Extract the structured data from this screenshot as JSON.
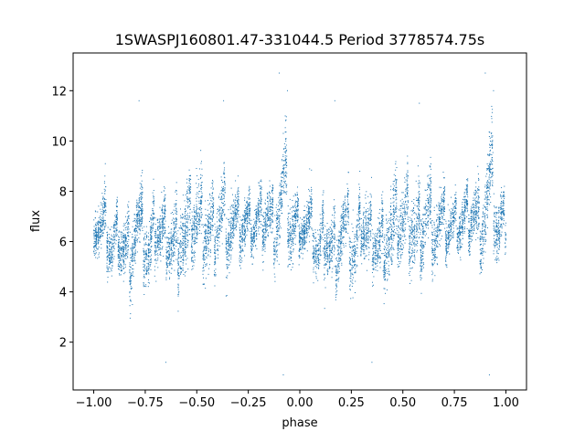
{
  "chart_data": {
    "type": "scatter",
    "title": "1SWASPJ160801.47-331044.5 Period 3778574.75s",
    "xlabel": "phase",
    "ylabel": "flux",
    "xlim": [
      -1.1,
      1.1
    ],
    "ylim": [
      0.1,
      13.5
    ],
    "xticks": [
      -1.0,
      -0.75,
      -0.5,
      -0.25,
      0.0,
      0.25,
      0.5,
      0.75,
      1.0
    ],
    "xtick_labels": [
      "−1.00",
      "−0.75",
      "−0.50",
      "−0.25",
      "0.00",
      "0.25",
      "0.50",
      "0.75",
      "1.00"
    ],
    "yticks": [
      2,
      4,
      6,
      8,
      10,
      12
    ],
    "ytick_labels": [
      "2",
      "4",
      "6",
      "8",
      "10",
      "12"
    ],
    "grid": false,
    "marker_color": "#1f77b4",
    "marker": "point",
    "series": [
      {
        "name": "",
        "profile": {
          "phase": [
            0.0,
            0.03,
            0.06,
            0.09,
            0.12,
            0.15,
            0.18,
            0.21,
            0.24,
            0.27,
            0.3,
            0.33,
            0.36,
            0.39,
            0.42,
            0.45,
            0.48,
            0.51,
            0.54,
            0.57,
            0.6,
            0.63,
            0.66,
            0.69,
            0.72,
            0.75,
            0.78,
            0.81,
            0.84,
            0.87,
            0.9,
            0.93,
            0.96,
            1.0
          ],
          "flux_center": [
            6.8,
            6.5,
            6.6,
            5.4,
            6.4,
            5.6,
            5.8,
            6.6,
            6.0,
            5.2,
            6.8,
            6.2,
            6.2,
            5.7,
            6.6,
            5.8,
            6.9,
            6.5,
            6.7,
            6.0,
            6.8,
            7.2,
            6.5,
            6.7,
            6.5,
            6.7,
            6.6,
            7.0,
            7.2,
            6.7,
            7.4,
            8.2,
            6.3,
            6.8
          ],
          "flux_spread": [
            0.9,
            1.1,
            1.3,
            1.2,
            1.3,
            1.4,
            1.6,
            1.4,
            1.6,
            1.5,
            1.4,
            1.5,
            1.2,
            1.6,
            1.9,
            2.0,
            1.7,
            1.9,
            1.8,
            1.8,
            1.5,
            1.7,
            1.4,
            1.2,
            1.3,
            1.0,
            1.1,
            1.3,
            1.2,
            1.4,
            1.8,
            2.0,
            1.5,
            1.0
          ]
        },
        "phase_range": [
          -1.0,
          1.0
        ],
        "n_points": 9000,
        "outliers": [
          {
            "x": -0.78,
            "y": 11.6
          },
          {
            "x": -0.37,
            "y": 11.6
          },
          {
            "x": -0.1,
            "y": 12.7
          },
          {
            "x": -0.06,
            "y": 12.0
          },
          {
            "x": -0.08,
            "y": 0.7
          },
          {
            "x": 0.17,
            "y": 11.6
          },
          {
            "x": 0.58,
            "y": 11.5
          },
          {
            "x": 0.9,
            "y": 12.7
          },
          {
            "x": 0.94,
            "y": 12.0
          },
          {
            "x": 0.92,
            "y": 0.7
          },
          {
            "x": -0.65,
            "y": 1.2
          },
          {
            "x": 0.35,
            "y": 1.2
          }
        ]
      }
    ]
  }
}
